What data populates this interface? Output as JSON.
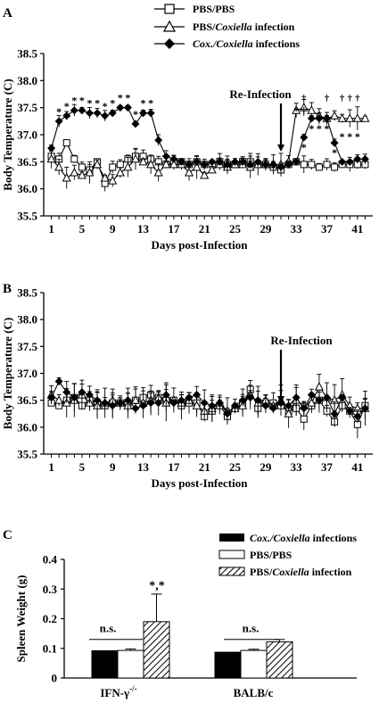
{
  "chart_data": [
    {
      "panel": "A",
      "type": "line",
      "ylabel": "Body Temperature (C)",
      "xlabel": "Days post-Infection",
      "ylim": [
        35.5,
        38.5
      ],
      "yticks": [
        "35.5",
        "36.0",
        "36.5",
        "37.0",
        "37.5",
        "38.0",
        "38.5"
      ],
      "xticks": [
        "1",
        "5",
        "9",
        "13",
        "17",
        "21",
        "25",
        "29",
        "33",
        "37",
        "41"
      ],
      "annotation": "Re-Infection",
      "reinfection_day": 31,
      "x": [
        1,
        2,
        3,
        4,
        5,
        6,
        7,
        8,
        9,
        10,
        11,
        12,
        13,
        14,
        15,
        16,
        17,
        18,
        19,
        20,
        21,
        22,
        23,
        24,
        25,
        26,
        27,
        28,
        29,
        30,
        31,
        32,
        33,
        34,
        35,
        36,
        37,
        38,
        39,
        40,
        41,
        42
      ],
      "series": [
        {
          "name": "PBS/PBS",
          "marker": "square",
          "values": [
            36.6,
            36.55,
            36.85,
            36.55,
            36.4,
            36.35,
            36.5,
            36.1,
            36.4,
            36.45,
            36.55,
            36.6,
            36.6,
            36.55,
            36.5,
            36.45,
            36.5,
            36.5,
            36.45,
            36.5,
            36.45,
            36.45,
            36.5,
            36.45,
            36.45,
            36.5,
            36.5,
            36.45,
            36.45,
            36.4,
            36.35,
            36.45,
            36.5,
            36.45,
            36.45,
            36.4,
            36.45,
            36.4,
            36.45,
            36.45,
            36.45,
            36.45
          ]
        },
        {
          "name": "PBS/Coxiella infection",
          "marker": "triangle",
          "values": [
            36.55,
            36.4,
            36.2,
            36.3,
            36.25,
            36.3,
            36.45,
            36.2,
            36.15,
            36.3,
            36.4,
            36.55,
            36.5,
            36.45,
            36.3,
            36.45,
            36.45,
            36.45,
            36.3,
            36.4,
            36.25,
            36.35,
            36.45,
            36.4,
            36.45,
            36.45,
            36.4,
            36.45,
            36.45,
            36.45,
            36.45,
            36.5,
            37.45,
            37.5,
            37.45,
            37.35,
            37.3,
            37.35,
            37.3,
            37.3,
            37.3,
            37.3
          ]
        },
        {
          "name": "Cox./Coxiella infections",
          "marker": "diamond",
          "values": [
            36.75,
            37.25,
            37.35,
            37.45,
            37.45,
            37.4,
            37.4,
            37.35,
            37.4,
            37.5,
            37.5,
            37.2,
            37.4,
            37.4,
            36.9,
            36.6,
            36.55,
            36.5,
            36.45,
            36.5,
            36.45,
            36.5,
            36.5,
            36.45,
            36.5,
            36.5,
            36.45,
            36.5,
            36.45,
            36.45,
            36.4,
            36.45,
            36.5,
            36.95,
            37.3,
            37.3,
            37.3,
            36.85,
            36.5,
            36.5,
            36.55,
            36.55
          ]
        }
      ],
      "significance": [
        "*",
        "*",
        "*",
        "*",
        "*",
        "*",
        "*",
        "*",
        "*",
        "*",
        "*",
        "*",
        "*",
        "*",
        "*",
        "*",
        "*",
        "*",
        "*",
        "*",
        "*",
        "*",
        "†",
        "†",
        "†",
        "†",
        "†"
      ]
    },
    {
      "panel": "B",
      "type": "line",
      "ylabel": "Body Temperature (C)",
      "xlabel": "Days post-Infection",
      "ylim": [
        35.5,
        38.5
      ],
      "yticks": [
        "35.5",
        "36.0",
        "36.5",
        "37.0",
        "37.5",
        "38.0",
        "38.5"
      ],
      "xticks": [
        "1",
        "5",
        "9",
        "13",
        "17",
        "21",
        "25",
        "29",
        "33",
        "37",
        "41"
      ],
      "annotation": "Re-Infection",
      "reinfection_day": 31,
      "x": [
        1,
        2,
        3,
        4,
        5,
        6,
        7,
        8,
        9,
        10,
        11,
        12,
        13,
        14,
        15,
        16,
        17,
        18,
        19,
        20,
        21,
        22,
        23,
        24,
        25,
        26,
        27,
        28,
        29,
        30,
        31,
        32,
        33,
        34,
        35,
        36,
        37,
        38,
        39,
        40,
        41,
        42
      ],
      "series": [
        {
          "name": "PBS/PBS",
          "marker": "square",
          "values": [
            36.45,
            36.4,
            36.5,
            36.55,
            36.4,
            36.5,
            36.45,
            36.4,
            36.45,
            36.45,
            36.45,
            36.5,
            36.55,
            36.6,
            36.55,
            36.5,
            36.5,
            36.4,
            36.45,
            36.45,
            36.2,
            36.3,
            36.4,
            36.2,
            36.35,
            36.45,
            36.7,
            36.35,
            36.45,
            36.45,
            36.4,
            36.3,
            36.35,
            36.15,
            36.4,
            36.5,
            36.3,
            36.1,
            36.4,
            36.3,
            36.05,
            36.4
          ]
        },
        {
          "name": "PBS/Coxiella infection",
          "marker": "triangle",
          "values": [
            36.6,
            36.5,
            36.45,
            36.5,
            36.6,
            36.45,
            36.4,
            36.45,
            36.5,
            36.45,
            36.4,
            36.5,
            36.45,
            36.5,
            36.55,
            36.45,
            36.5,
            36.45,
            36.5,
            36.4,
            36.3,
            36.35,
            36.45,
            36.3,
            36.35,
            36.4,
            36.6,
            36.45,
            36.5,
            36.4,
            36.5,
            36.25,
            36.5,
            36.4,
            36.45,
            36.75,
            36.55,
            36.5,
            36.6,
            36.4,
            36.35,
            36.35
          ]
        },
        {
          "name": "Cox./Coxiella infections",
          "marker": "diamond",
          "values": [
            36.55,
            36.85,
            36.65,
            36.55,
            36.65,
            36.6,
            36.5,
            36.45,
            36.4,
            36.45,
            36.5,
            36.35,
            36.4,
            36.45,
            36.45,
            36.6,
            36.45,
            36.5,
            36.55,
            36.6,
            36.45,
            36.4,
            36.45,
            36.25,
            36.4,
            36.5,
            36.55,
            36.5,
            36.4,
            36.35,
            36.45,
            36.4,
            36.55,
            36.35,
            36.6,
            36.5,
            36.55,
            36.25,
            36.55,
            36.3,
            36.2,
            36.35
          ]
        }
      ]
    },
    {
      "panel": "C",
      "type": "bar",
      "ylabel": "Spleen Weight (g)",
      "ylim": [
        0,
        0.4
      ],
      "yticks": [
        "0",
        "0.1",
        "0.2",
        "0.3",
        "0.4"
      ],
      "categories": [
        "IFN-γ-/-",
        "BALB/c"
      ],
      "series": [
        {
          "name": "Cox./Coxiella infections",
          "fill": "black",
          "values": [
            0.092,
            0.087
          ],
          "errors": [
            0,
            0
          ]
        },
        {
          "name": "PBS/PBS",
          "fill": "white",
          "values": [
            0.093,
            0.093
          ],
          "errors": [
            0.005,
            0.004
          ]
        },
        {
          "name": "PBS/Coxiella infection",
          "fill": "hatched",
          "values": [
            0.19,
            0.122
          ],
          "errors": [
            0.093,
            0.008
          ]
        }
      ],
      "annotations": [
        "n.s.",
        "*,*",
        "n.s."
      ]
    }
  ],
  "legend_top": {
    "pbs_pbs": "PBS/PBS",
    "pbs_cox_a": "PBS/",
    "pbs_cox_b": "Coxiella",
    "pbs_cox_c": " infection",
    "cox_a": "Cox./Coxiella",
    "cox_b": " infections"
  },
  "panel_labels": {
    "a": "A",
    "b": "B",
    "c": "C"
  },
  "panel_c": {
    "xlabel_1_base": "IFN-γ",
    "xlabel_1_sup": "-/-",
    "xlabel_2": "BALB/c",
    "ns": "n.s.",
    "star": "*,*",
    "legend_cox_a": "Cox./Coxiella",
    "legend_cox_b": " infections",
    "legend_pbs": "PBS/PBS",
    "legend_pbs_cox_a": "PBS/",
    "legend_pbs_cox_b": "Coxiella",
    "legend_pbs_cox_c": " infection"
  }
}
